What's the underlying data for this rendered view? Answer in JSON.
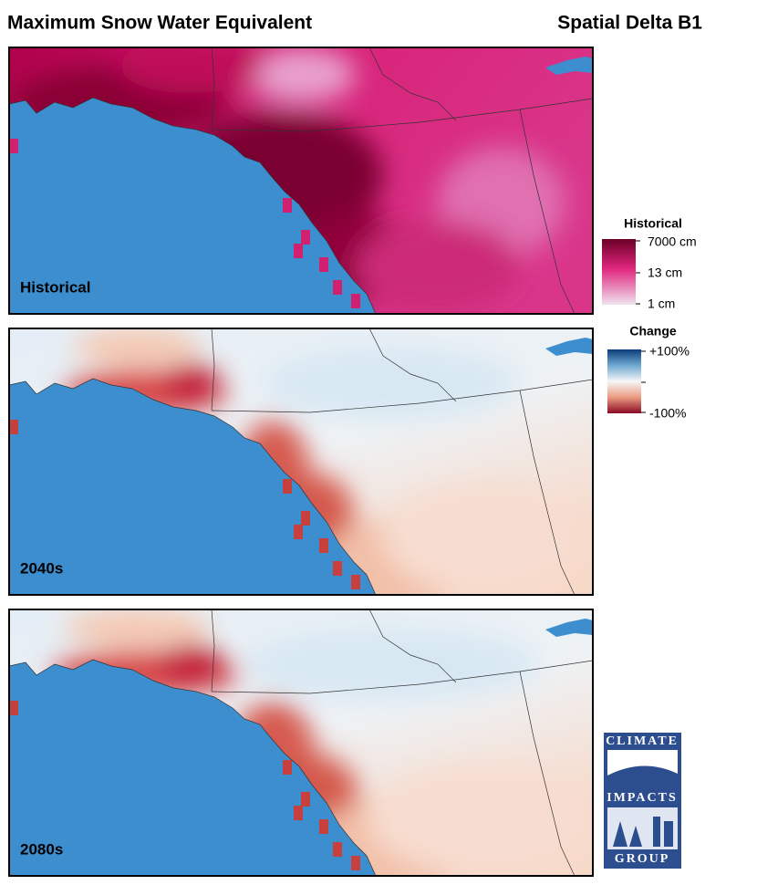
{
  "header": {
    "title": "Maximum Snow Water Equivalent",
    "subtitle": "Spatial Delta B1"
  },
  "panels": [
    {
      "label": "Historical"
    },
    {
      "label": "2040s"
    },
    {
      "label": "2080s"
    }
  ],
  "legends": [
    {
      "title": "Historical",
      "labels": [
        "7000 cm",
        "13 cm",
        "1 cm"
      ]
    },
    {
      "title": "Change",
      "labels": [
        "+100%",
        "-100%"
      ]
    }
  ],
  "logo": {
    "lines": [
      "CLIMATE",
      "IMPACTS",
      "GROUP"
    ]
  }
}
